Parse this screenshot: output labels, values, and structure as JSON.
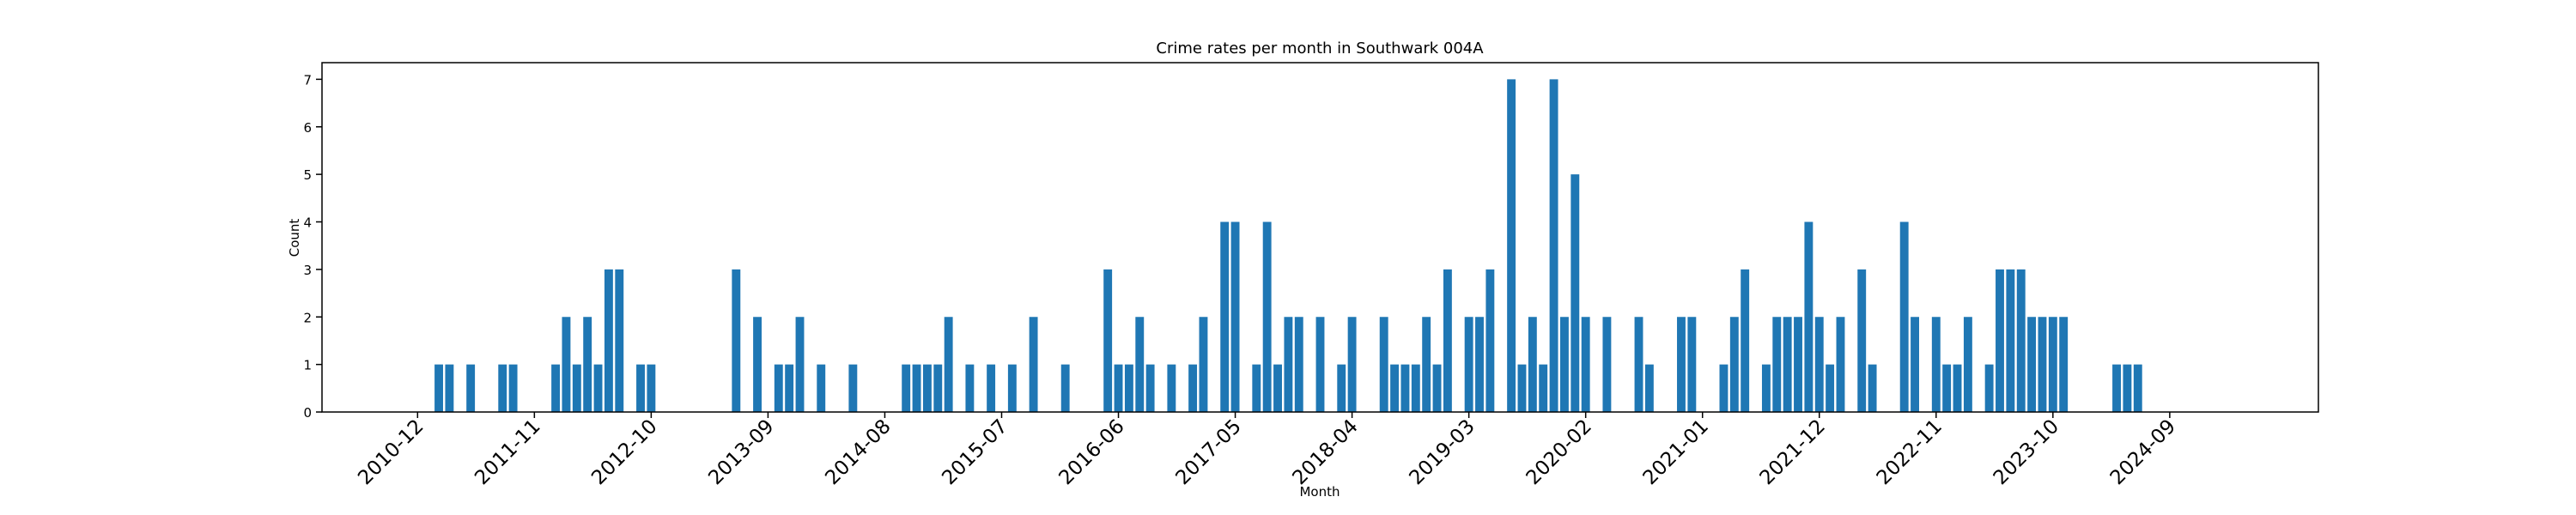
{
  "chart_data": {
    "type": "bar",
    "title": "Crime rates per month in Southwark 004A",
    "x_label": "Month",
    "y_label": "Count",
    "color": "#1f77b4",
    "x": [
      "2011-02",
      "2011-03",
      "2011-05",
      "2011-08",
      "2011-09",
      "2012-01",
      "2012-02",
      "2012-03",
      "2012-04",
      "2012-05",
      "2012-06",
      "2012-07",
      "2012-09",
      "2012-10",
      "2013-06",
      "2013-08",
      "2013-10",
      "2013-11",
      "2013-12",
      "2014-02",
      "2014-05",
      "2014-10",
      "2014-11",
      "2014-12",
      "2015-01",
      "2015-02",
      "2015-04",
      "2015-06",
      "2015-08",
      "2015-10",
      "2016-01",
      "2016-05",
      "2016-06",
      "2016-07",
      "2016-08",
      "2016-09",
      "2016-11",
      "2017-01",
      "2017-02",
      "2017-04",
      "2017-05",
      "2017-07",
      "2017-08",
      "2017-09",
      "2017-10",
      "2017-11",
      "2018-01",
      "2018-03",
      "2018-04",
      "2018-07",
      "2018-08",
      "2018-09",
      "2018-10",
      "2018-11",
      "2018-12",
      "2019-01",
      "2019-03",
      "2019-04",
      "2019-05",
      "2019-07",
      "2019-08",
      "2019-09",
      "2019-10",
      "2019-11",
      "2019-12",
      "2020-01",
      "2020-02",
      "2020-04",
      "2020-07",
      "2020-08",
      "2020-11",
      "2020-12",
      "2021-03",
      "2021-04",
      "2021-05",
      "2021-07",
      "2021-08",
      "2021-09",
      "2021-10",
      "2021-11",
      "2021-12",
      "2022-01",
      "2022-02",
      "2022-04",
      "2022-05",
      "2022-08",
      "2022-09",
      "2022-11",
      "2022-12",
      "2023-01",
      "2023-02",
      "2023-04",
      "2023-05",
      "2023-06",
      "2023-07",
      "2023-08",
      "2023-09",
      "2023-10",
      "2023-11",
      "2024-04",
      "2024-05",
      "2024-06"
    ],
    "values": [
      1,
      1,
      1,
      1,
      1,
      1,
      2,
      1,
      2,
      1,
      3,
      3,
      1,
      1,
      3,
      2,
      1,
      1,
      2,
      1,
      1,
      1,
      1,
      1,
      1,
      2,
      1,
      1,
      1,
      2,
      1,
      3,
      1,
      1,
      2,
      1,
      1,
      1,
      2,
      4,
      4,
      1,
      4,
      1,
      2,
      2,
      2,
      1,
      2,
      2,
      1,
      1,
      1,
      2,
      1,
      3,
      2,
      2,
      3,
      7,
      1,
      2,
      1,
      7,
      2,
      5,
      2,
      2,
      2,
      1,
      2,
      2,
      1,
      2,
      3,
      1,
      2,
      2,
      2,
      4,
      2,
      1,
      2,
      3,
      1,
      4,
      2,
      2,
      1,
      1,
      2,
      1,
      3,
      3,
      3,
      2,
      2,
      2,
      2,
      1,
      1,
      1
    ],
    "xlim": [
      "2010-03",
      "2025-11"
    ],
    "xticks": [
      "2010-12",
      "2011-11",
      "2012-10",
      "2013-09",
      "2014-08",
      "2015-07",
      "2016-06",
      "2017-05",
      "2018-04",
      "2019-03",
      "2020-02",
      "2021-01",
      "2021-12",
      "2022-11",
      "2023-10",
      "2024-09"
    ],
    "ylim": [
      0,
      7.35
    ],
    "yticks": [
      0,
      1,
      2,
      3,
      4,
      5,
      6,
      7
    ],
    "grid": false
  }
}
